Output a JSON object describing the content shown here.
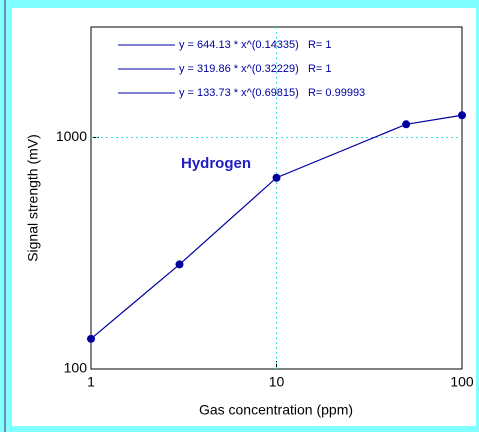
{
  "chart_data": {
    "type": "line",
    "annotation": "Hydrogen",
    "x_label": "Gas concentration (ppm)",
    "y_label": "Signal strength (mV)",
    "legend_entries": [
      "y = 644.13 * x^(0.14335)   R= 1",
      "y = 319.86 * x^(0.32229)   R= 1",
      "y = 133.73 * x^(0.69815)   R= 0.99993"
    ],
    "x": [
      1,
      3,
      10,
      50,
      100
    ],
    "series": [
      {
        "color": "#0000a0",
        "values": [
          135,
          283,
          670,
          1140,
          1247
        ]
      }
    ],
    "xlim": [
      1,
      100
    ],
    "xticks": [
      1,
      10,
      100
    ],
    "ylim": [
      100,
      3000
    ],
    "yticks": [
      100,
      1000
    ],
    "log_x": true,
    "log_y": true,
    "grid": true
  }
}
